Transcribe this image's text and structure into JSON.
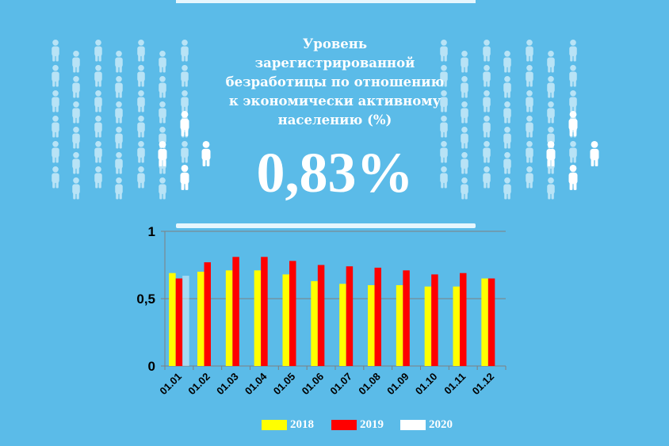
{
  "header": {
    "title_lines": [
      "Уровень",
      "зарегистрированной",
      "безработицы по отношению",
      "к экономически активному",
      "населению (%)"
    ],
    "value": "0,83%"
  },
  "colors": {
    "background": "#5bbbe8",
    "series_2018": "#ffff00",
    "series_2019": "#ff0000",
    "series_2020": "#ffffff",
    "figure_light": "#b8e3f6",
    "figure_white": "#ffffff"
  },
  "chart_data": {
    "type": "bar",
    "categories": [
      "01.01",
      "01.02",
      "01.03",
      "01.04",
      "01.05",
      "01.06",
      "01.07",
      "01.08",
      "01.09",
      "01.10",
      "01.11",
      "01.12"
    ],
    "series": [
      {
        "name": "2018",
        "values": [
          0.69,
          0.7,
          0.71,
          0.71,
          0.68,
          0.63,
          0.61,
          0.6,
          0.6,
          0.59,
          0.59,
          0.65
        ]
      },
      {
        "name": "2019",
        "values": [
          0.65,
          0.77,
          0.81,
          0.81,
          0.78,
          0.75,
          0.74,
          0.73,
          0.71,
          0.68,
          0.69,
          0.65
        ]
      },
      {
        "name": "2020",
        "values": [
          0.67,
          null,
          null,
          null,
          null,
          null,
          null,
          null,
          null,
          null,
          null,
          null
        ]
      }
    ],
    "y_ticks": [
      "0",
      "0,5",
      "1"
    ],
    "ylim": [
      0,
      1
    ],
    "grid": true,
    "legend_position": "bottom",
    "title": "",
    "xlabel": "",
    "ylabel": ""
  }
}
